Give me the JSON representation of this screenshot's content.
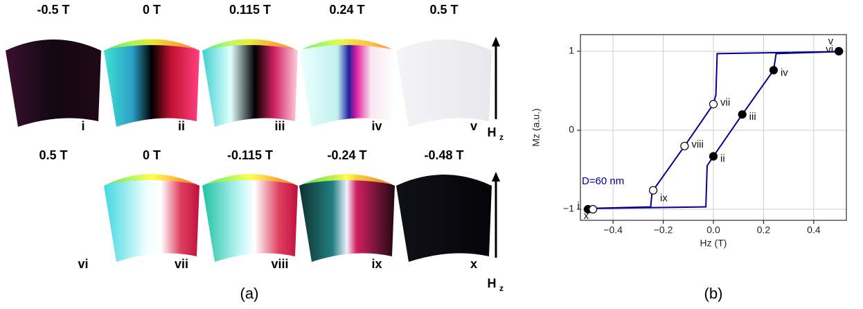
{
  "panel_a": {
    "rows": [
      {
        "items": [
          {
            "field": "-0.5 T",
            "label": "i"
          },
          {
            "field": "0 T",
            "label": "ii"
          },
          {
            "field": "0.115 T",
            "label": "iii"
          },
          {
            "field": "0.24 T",
            "label": "iv"
          },
          {
            "field": "0.5 T",
            "label": "v"
          }
        ]
      },
      {
        "items": [
          {
            "field": "0.5 T",
            "label": "vi"
          },
          {
            "field": "0 T",
            "label": "vii"
          },
          {
            "field": "-0.115 T",
            "label": "viii"
          },
          {
            "field": "-0.24 T",
            "label": "ix"
          },
          {
            "field": "-0.48 T",
            "label": "x"
          }
        ]
      }
    ],
    "arrow_label": {
      "main": "H",
      "sub": "z"
    },
    "caption": "(a)"
  },
  "caption_b": "(b)",
  "chart_data": {
    "type": "line",
    "x_label": "Hz (T)",
    "y_label": "Mz (a.u.)",
    "xlim": [
      -0.53,
      0.53
    ],
    "ylim": [
      -1.14,
      1.21
    ],
    "xticks": [
      {
        "value": -0.4,
        "label": "−0.4"
      },
      {
        "value": -0.2,
        "label": "−0.2"
      },
      {
        "value": 0,
        "label": "0.0"
      },
      {
        "value": 0.2,
        "label": "0.2"
      },
      {
        "value": 0.4,
        "label": "0.4"
      }
    ],
    "yticks": [
      {
        "value": -1,
        "label": "−1"
      },
      0,
      1
    ],
    "grid": true,
    "series": [
      {
        "color": "#00008b",
        "x": [
          -0.5,
          -0.03,
          -0.025,
          0,
          0.115,
          0.24,
          0.25,
          0.5,
          0.015,
          0.01,
          0,
          -0.115,
          -0.24,
          -0.245,
          -0.25,
          -0.5
        ],
        "values": [
          -0.99,
          -0.97,
          -0.45,
          -0.33,
          0.2,
          0.76,
          0.97,
          0.995,
          0.97,
          0.45,
          0.33,
          -0.2,
          -0.76,
          -0.8,
          -0.97,
          -0.99
        ]
      }
    ],
    "points": [
      {
        "label": "i",
        "x": -0.5,
        "y": -1,
        "filled": true
      },
      {
        "label": "ii",
        "x": 0,
        "y": -0.33,
        "filled": true
      },
      {
        "label": "iii",
        "x": 0.115,
        "y": 0.2,
        "filled": true
      },
      {
        "label": "iv",
        "x": 0.24,
        "y": 0.76,
        "filled": true
      },
      {
        "label": "v",
        "x": 0.5,
        "y": 1,
        "filled": true
      },
      {
        "label": "vi",
        "x": 0.5,
        "y": 1,
        "filled": true
      },
      {
        "label": "vii",
        "x": 0,
        "y": 0.33,
        "filled": false
      },
      {
        "label": "viii",
        "x": -0.115,
        "y": -0.2,
        "filled": false
      },
      {
        "label": "ix",
        "x": -0.24,
        "y": -0.76,
        "filled": false
      },
      {
        "label": "x",
        "x": -0.48,
        "y": -1,
        "filled": false
      }
    ],
    "annotation": {
      "text": "D=60 nm",
      "x": -0.44,
      "y": -0.65,
      "color": "#00008b"
    }
  }
}
